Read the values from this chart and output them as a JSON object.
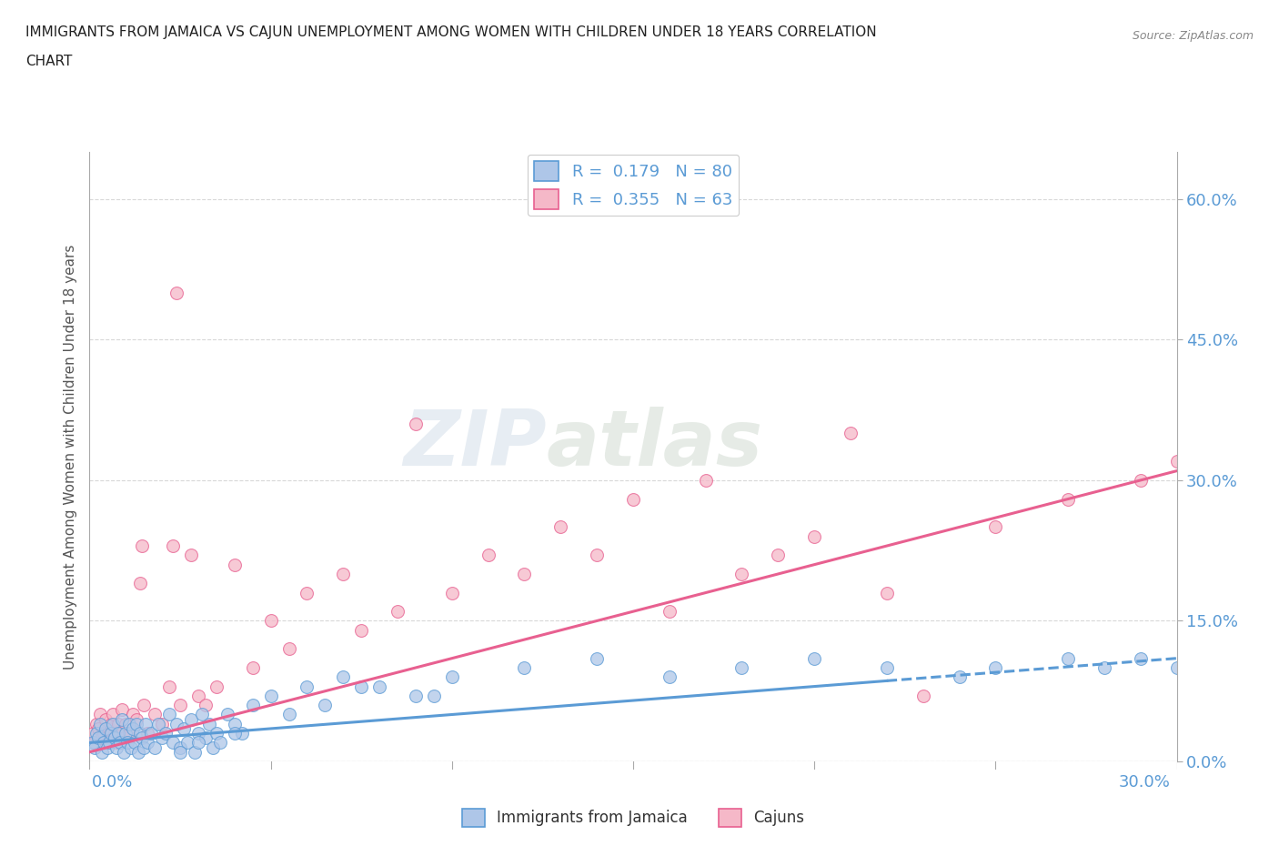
{
  "title_line1": "IMMIGRANTS FROM JAMAICA VS CAJUN UNEMPLOYMENT AMONG WOMEN WITH CHILDREN UNDER 18 YEARS CORRELATION",
  "title_line2": "CHART",
  "source": "Source: ZipAtlas.com",
  "ylabel": "Unemployment Among Women with Children Under 18 years",
  "ytick_vals": [
    0.0,
    15.0,
    30.0,
    45.0,
    60.0
  ],
  "watermark_part1": "ZIP",
  "watermark_part2": "atlas",
  "r_jamaica": 0.179,
  "n_jamaica": 80,
  "r_cajun": 0.355,
  "n_cajun": 63,
  "color_jamaica_fill": "#aec6e8",
  "color_jamaica_edge": "#5b9bd5",
  "color_cajun_fill": "#f5b8c8",
  "color_cajun_edge": "#e86090",
  "color_jamaica_line": "#5b9bd5",
  "color_cajun_line": "#e86090",
  "background_color": "#ffffff",
  "grid_color": "#d8d8d8",
  "xmin": 0.0,
  "xmax": 30.0,
  "ymin": 0.0,
  "ymax": 65.0,
  "jamaica_trend_x0": 0.0,
  "jamaica_trend_y0": 2.0,
  "jamaica_trend_x1": 30.0,
  "jamaica_trend_y1": 11.0,
  "cajun_trend_x0": 0.0,
  "cajun_trend_y0": 1.0,
  "cajun_trend_x1": 30.0,
  "cajun_trend_y1": 31.0,
  "jamaica_scatter_x": [
    0.1,
    0.15,
    0.2,
    0.25,
    0.3,
    0.35,
    0.4,
    0.45,
    0.5,
    0.55,
    0.6,
    0.65,
    0.7,
    0.75,
    0.8,
    0.85,
    0.9,
    0.95,
    1.0,
    1.05,
    1.1,
    1.15,
    1.2,
    1.25,
    1.3,
    1.35,
    1.4,
    1.45,
    1.5,
    1.55,
    1.6,
    1.7,
    1.8,
    1.9,
    2.0,
    2.1,
    2.2,
    2.3,
    2.4,
    2.5,
    2.6,
    2.7,
    2.8,
    2.9,
    3.0,
    3.1,
    3.2,
    3.3,
    3.4,
    3.5,
    3.6,
    3.8,
    4.0,
    4.2,
    4.5,
    5.0,
    5.5,
    6.0,
    6.5,
    7.0,
    8.0,
    9.0,
    10.0,
    12.0,
    14.0,
    16.0,
    18.0,
    20.0,
    22.0,
    24.0,
    25.0,
    27.0,
    28.0,
    29.0,
    30.0,
    4.0,
    3.0,
    2.5,
    7.5,
    9.5
  ],
  "jamaica_scatter_y": [
    2.0,
    1.5,
    3.0,
    2.5,
    4.0,
    1.0,
    2.0,
    3.5,
    1.5,
    2.0,
    3.0,
    4.0,
    2.5,
    1.5,
    3.0,
    2.0,
    4.5,
    1.0,
    3.0,
    2.0,
    4.0,
    1.5,
    3.5,
    2.0,
    4.0,
    1.0,
    3.0,
    2.5,
    1.5,
    4.0,
    2.0,
    3.0,
    1.5,
    4.0,
    2.5,
    3.0,
    5.0,
    2.0,
    4.0,
    1.5,
    3.5,
    2.0,
    4.5,
    1.0,
    3.0,
    5.0,
    2.5,
    4.0,
    1.5,
    3.0,
    2.0,
    5.0,
    4.0,
    3.0,
    6.0,
    7.0,
    5.0,
    8.0,
    6.0,
    9.0,
    8.0,
    7.0,
    9.0,
    10.0,
    11.0,
    9.0,
    10.0,
    11.0,
    10.0,
    9.0,
    10.0,
    11.0,
    10.0,
    11.0,
    10.0,
    3.0,
    2.0,
    1.0,
    8.0,
    7.0
  ],
  "cajun_scatter_x": [
    0.1,
    0.15,
    0.2,
    0.25,
    0.3,
    0.35,
    0.4,
    0.45,
    0.5,
    0.55,
    0.6,
    0.65,
    0.7,
    0.75,
    0.8,
    0.85,
    0.9,
    0.95,
    1.0,
    1.1,
    1.2,
    1.3,
    1.5,
    1.6,
    1.8,
    2.0,
    2.2,
    2.5,
    2.8,
    3.0,
    3.2,
    3.5,
    4.0,
    5.0,
    6.0,
    7.0,
    9.0,
    11.0,
    13.0,
    15.0,
    17.0,
    19.0,
    21.0,
    23.0,
    25.0,
    27.0,
    29.0,
    30.0,
    2.3,
    2.4,
    1.4,
    1.45,
    4.5,
    5.5,
    7.5,
    8.5,
    10.0,
    12.0,
    14.0,
    16.0,
    18.0,
    20.0,
    22.0
  ],
  "cajun_scatter_y": [
    3.0,
    2.0,
    4.0,
    3.5,
    5.0,
    2.5,
    3.0,
    4.5,
    2.0,
    3.5,
    4.0,
    5.0,
    3.0,
    2.0,
    4.0,
    3.0,
    5.5,
    2.5,
    4.0,
    3.0,
    5.0,
    4.5,
    6.0,
    3.0,
    5.0,
    4.0,
    8.0,
    6.0,
    22.0,
    7.0,
    6.0,
    8.0,
    21.0,
    15.0,
    18.0,
    20.0,
    36.0,
    22.0,
    25.0,
    28.0,
    30.0,
    22.0,
    35.0,
    7.0,
    25.0,
    28.0,
    30.0,
    32.0,
    23.0,
    50.0,
    19.0,
    23.0,
    10.0,
    12.0,
    14.0,
    16.0,
    18.0,
    20.0,
    22.0,
    16.0,
    20.0,
    24.0,
    18.0
  ]
}
